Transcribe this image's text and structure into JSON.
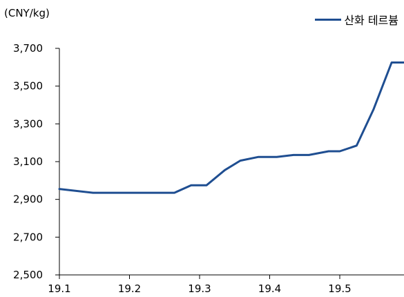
{
  "chart_data": {
    "type": "line",
    "unit_label": "(CNY/kg)",
    "x_tick_labels": [
      "19.1",
      "19.2",
      "19.3",
      "19.4",
      "19.5"
    ],
    "y_tick_labels": [
      "3,700",
      "3,500",
      "3,300",
      "3,100",
      "2,900",
      "2,700",
      "2,500"
    ],
    "ylim": [
      2500,
      3700
    ],
    "grid": false,
    "legend_position": "top-right",
    "series": [
      {
        "name": "산화 테르븀",
        "color": "#1f4e91",
        "x": [
          0.0,
          0.48,
          1.64,
          1.88,
          2.1,
          2.36,
          2.58,
          2.84,
          3.1,
          3.34,
          3.56,
          3.84,
          4.0,
          4.24,
          4.48,
          4.74,
          5.0
        ],
        "values": [
          2955,
          2935,
          2935,
          2975,
          2975,
          3055,
          3105,
          3125,
          3125,
          3135,
          3135,
          3155,
          3155,
          3185,
          3375,
          3625,
          3625
        ]
      }
    ]
  }
}
